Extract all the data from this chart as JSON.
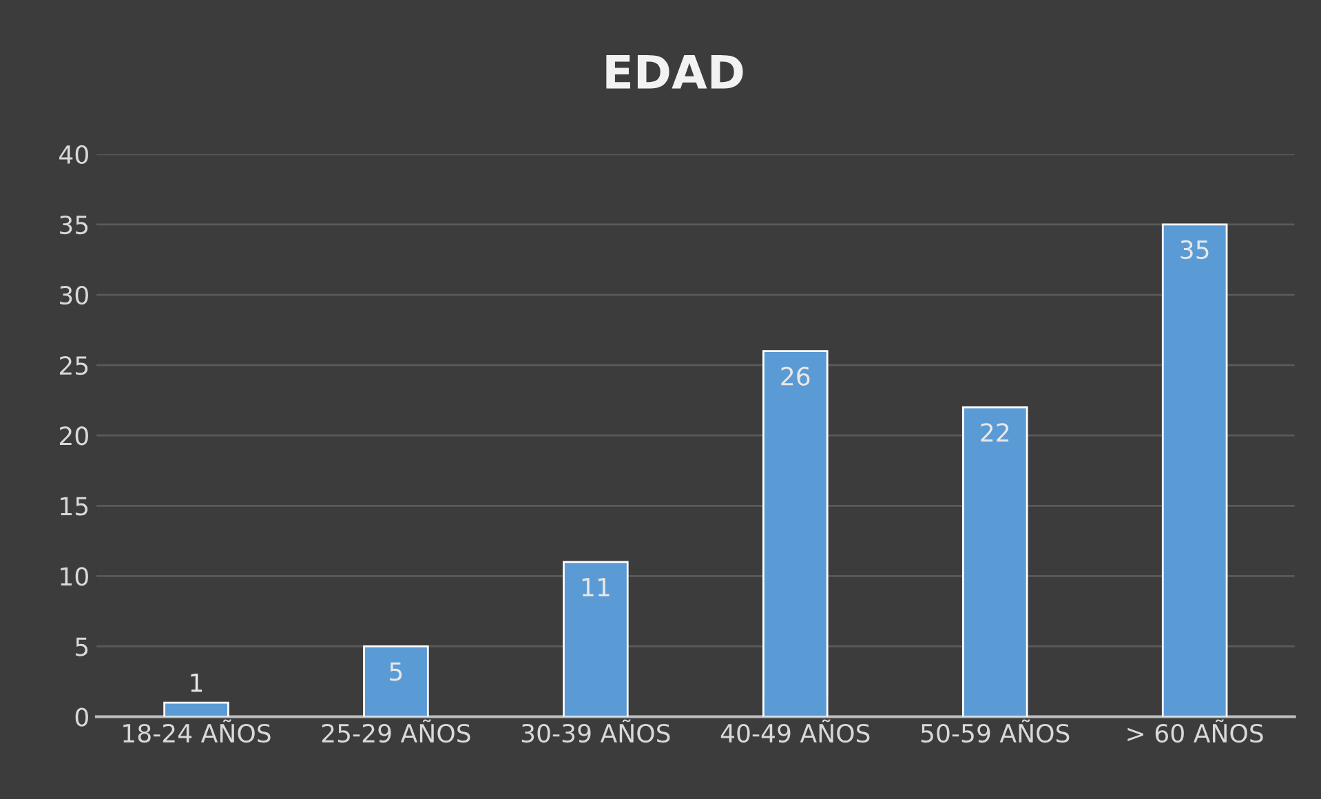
{
  "chart_data": {
    "type": "bar",
    "title": "EDAD",
    "categories": [
      "18-24 AÑOS",
      "25-29 AÑOS",
      "30-39 AÑOS",
      "40-49 AÑOS",
      "50-59 AÑOS",
      "> 60 AÑOS"
    ],
    "values": [
      1,
      5,
      11,
      26,
      22,
      35
    ],
    "color": "#5b9bd5",
    "ylim": [
      0,
      40
    ],
    "yticks": [
      0,
      5,
      10,
      15,
      20,
      25,
      30,
      35,
      40
    ],
    "grid": "y",
    "data_labels": true
  }
}
